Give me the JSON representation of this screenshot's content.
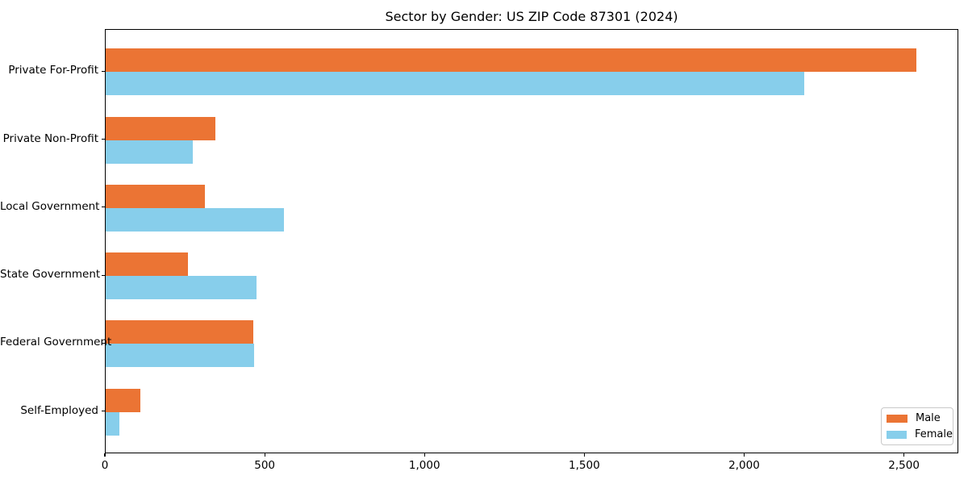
{
  "chart_data": {
    "type": "bar",
    "orientation": "horizontal",
    "title": "Sector by Gender: US ZIP Code 87301 (2024)",
    "categories": [
      "Private For-Profit",
      "Private Non-Profit",
      "Local Government",
      "State Government",
      "Federal Government",
      "Self-Employed"
    ],
    "series": [
      {
        "name": "Male",
        "color": "#EB7434",
        "values": [
          2540,
          345,
          310,
          257,
          462,
          108
        ]
      },
      {
        "name": "Female",
        "color": "#87CEEB",
        "values": [
          2190,
          273,
          558,
          472,
          465,
          42
        ]
      }
    ],
    "xlim": [
      0,
      2670
    ],
    "ylim_pad": 0.62,
    "x_ticks": [
      0,
      500,
      1000,
      1500,
      2000,
      2500
    ],
    "x_tick_labels": [
      "0",
      "500",
      "1,000",
      "1,500",
      "2,000",
      "2,500"
    ],
    "grid": false,
    "legend": {
      "position": "lower right",
      "entries": [
        "Male",
        "Female"
      ]
    }
  },
  "colors": {
    "male": "#EB7434",
    "female": "#87CEEB",
    "frame": "#000000",
    "legend_border": "#c9c9c9"
  }
}
